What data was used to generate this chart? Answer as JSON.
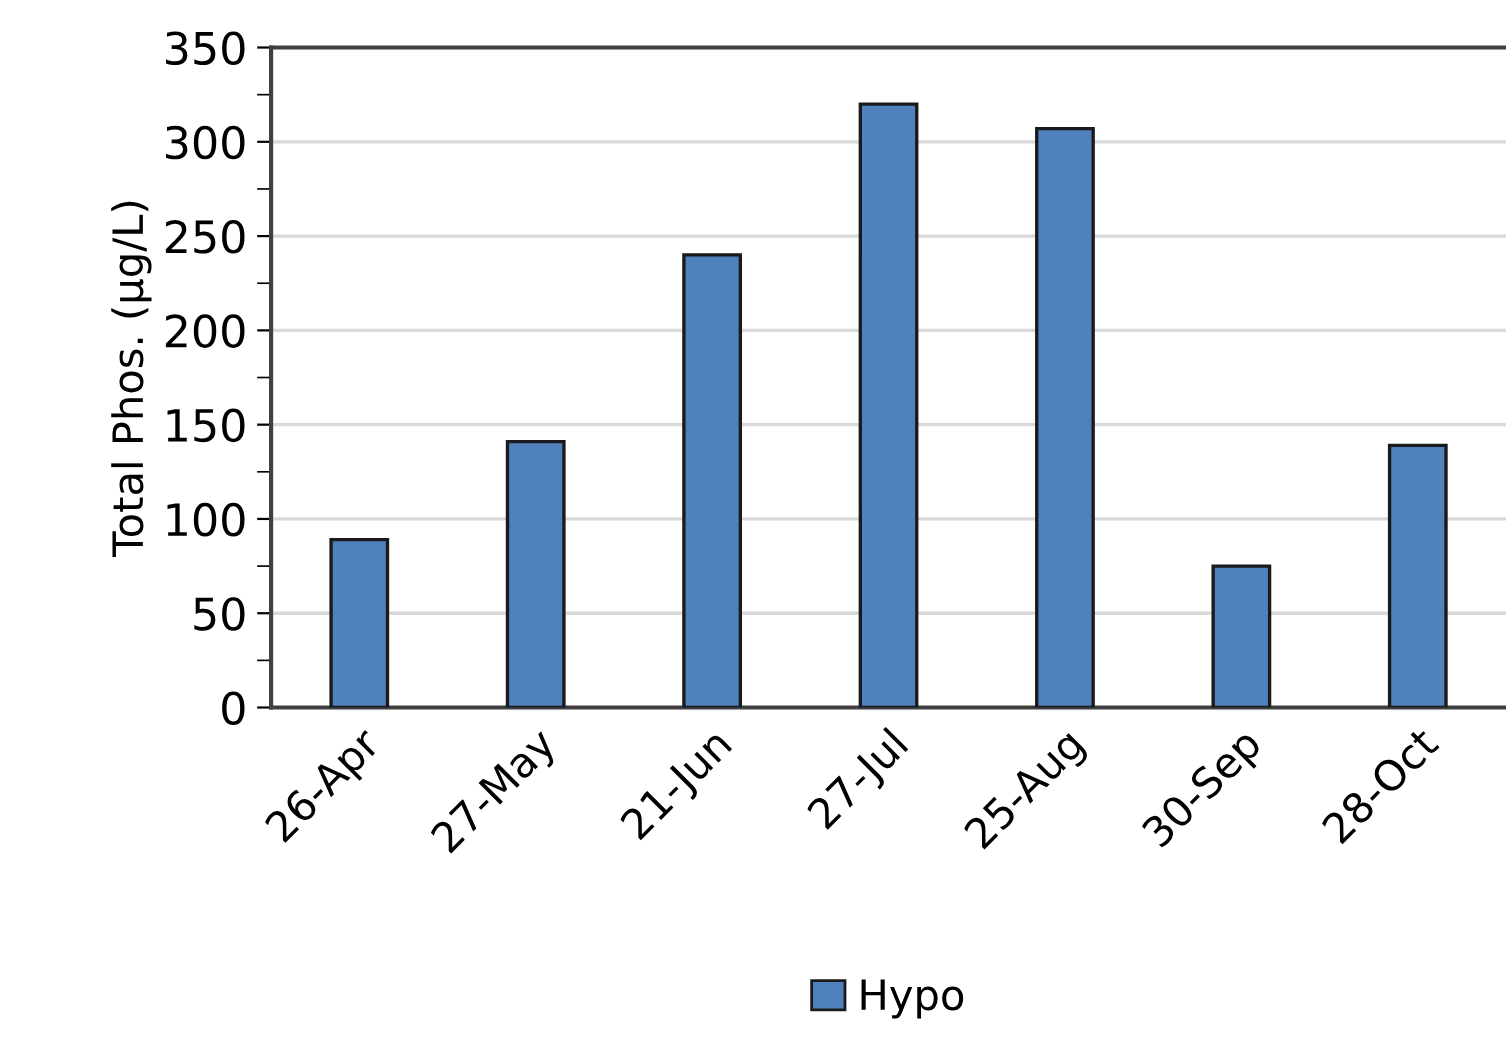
{
  "chart_data": {
    "type": "bar",
    "ylabel": "Total Phos. (µg/L)",
    "categories": [
      "26-Apr",
      "27-May",
      "21-Jun",
      "27-Jul",
      "25-Aug",
      "30-Sep",
      "28-Oct"
    ],
    "series": [
      {
        "name": "Hypo",
        "color": "#4f81bd",
        "values": [
          89,
          141,
          240,
          320,
          307,
          75,
          139
        ]
      }
    ],
    "ylim": [
      0,
      350
    ],
    "yticks": [
      0,
      50,
      100,
      150,
      200,
      250,
      300,
      350
    ],
    "grid": "y",
    "legend": "bottom"
  }
}
